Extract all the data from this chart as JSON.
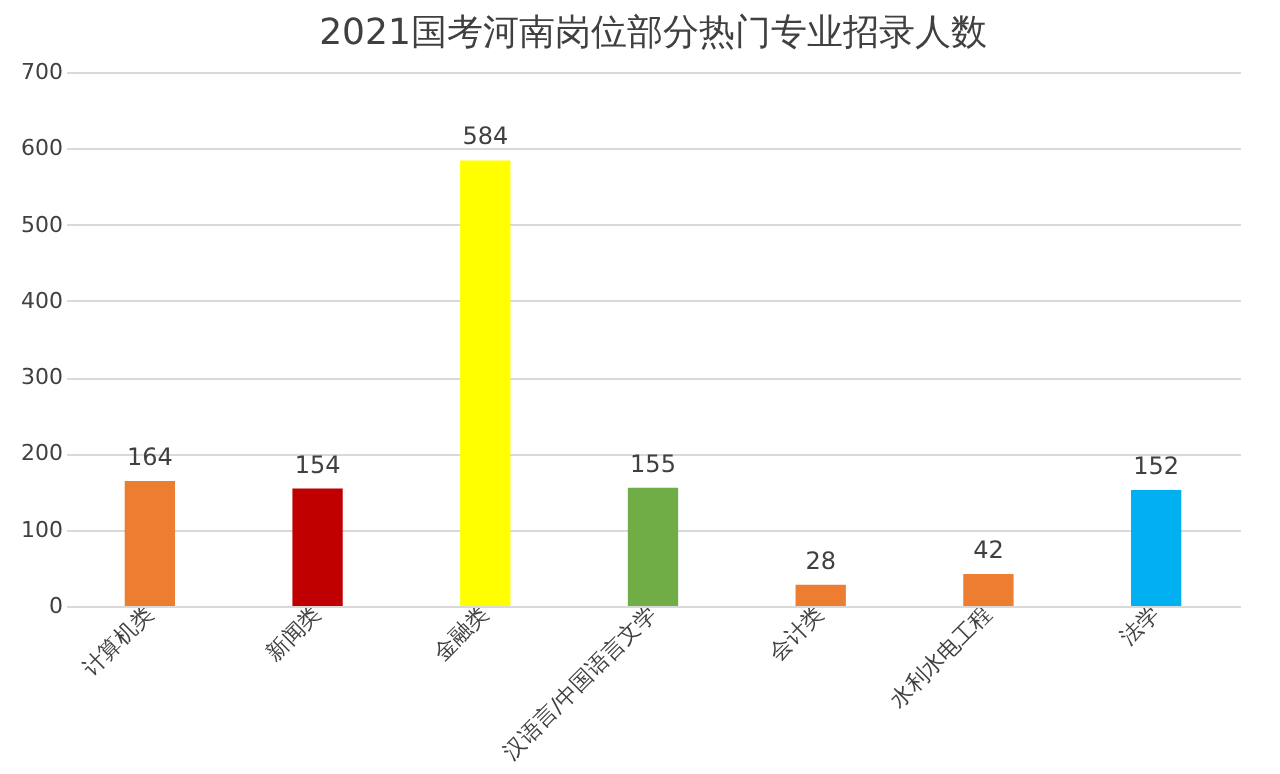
{
  "chart_data": {
    "type": "bar",
    "title": "2021国考河南岗位部分热门专业招录人数",
    "categories": [
      "计算机类",
      "新闻类",
      "金融类",
      "汉语言/中国语言文学",
      "会计类",
      "水利水电工程",
      "法学"
    ],
    "values": [
      164,
      154,
      584,
      155,
      28,
      42,
      152
    ],
    "colors": [
      "#ed7d31",
      "#c00000",
      "#ffff00",
      "#70ad47",
      "#ed7d31",
      "#ed7d31",
      "#00b0f0"
    ],
    "ylim": [
      0,
      700
    ],
    "yticks": [
      0,
      100,
      200,
      300,
      400,
      500,
      600,
      700
    ],
    "grid": "y",
    "data_labels": true
  }
}
